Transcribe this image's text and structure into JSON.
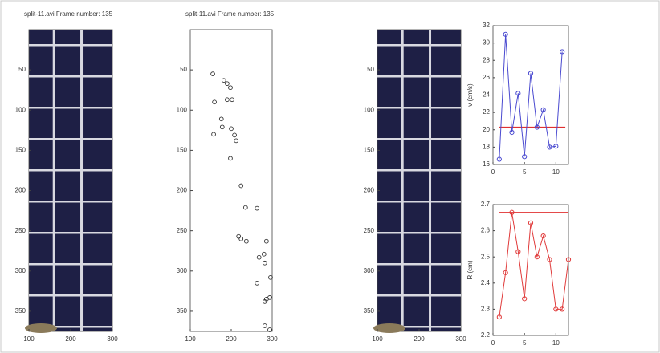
{
  "chart_data": [
    {
      "type": "image",
      "title": "split-11.avi  Frame number: 135",
      "xlim": [
        100,
        300
      ],
      "xticks": [
        100,
        200,
        300
      ],
      "ylim": [
        0,
        375
      ],
      "yticks": [
        50,
        100,
        150,
        200,
        250,
        300,
        350
      ],
      "background": "#1e1f45"
    },
    {
      "type": "scatter",
      "title": "split-11.avi  Frame number: 135",
      "xlim": [
        100,
        300
      ],
      "xticks": [
        100,
        200,
        300
      ],
      "ylim": [
        0,
        375
      ],
      "yticks": [
        50,
        100,
        150,
        200,
        250,
        300,
        350
      ],
      "color": "#333333",
      "x": [
        155,
        159,
        182,
        190,
        198,
        190,
        202,
        176,
        178,
        157,
        200,
        208,
        212,
        198,
        224,
        235,
        263,
        218,
        224,
        237,
        286,
        268,
        280,
        282,
        263,
        296,
        282,
        286,
        294,
        282,
        294
      ],
      "y": [
        55,
        90,
        63,
        67,
        72,
        87,
        87,
        111,
        121,
        130,
        123,
        131,
        138,
        160,
        194,
        221,
        222,
        257,
        260,
        263,
        263,
        283,
        279,
        290,
        315,
        308,
        338,
        335,
        333,
        368,
        373
      ]
    },
    {
      "type": "image",
      "xlim": [
        100,
        300
      ],
      "xticks": [
        100,
        200,
        300
      ],
      "ylim": [
        0,
        375
      ],
      "yticks": [
        50,
        100,
        150,
        200,
        250,
        300,
        350
      ],
      "background": "#1e1f45"
    },
    {
      "type": "line",
      "ylabel": "v (cm/s)",
      "xlim": [
        0,
        12
      ],
      "xticks": [
        0,
        5,
        10
      ],
      "ylim": [
        16,
        32
      ],
      "yticks": [
        16,
        18,
        20,
        22,
        24,
        26,
        28,
        30,
        32
      ],
      "color": "#4a4ad0",
      "x": [
        1,
        2,
        3,
        4,
        5,
        6,
        7,
        8,
        9,
        10,
        11
      ],
      "values": [
        16.6,
        31,
        19.7,
        24.2,
        16.9,
        26.5,
        20.3,
        22.3,
        18,
        18.1,
        29
      ],
      "reference_line": {
        "value": 20.3,
        "x": [
          1,
          11.5
        ],
        "color": "#e03030"
      }
    },
    {
      "type": "line",
      "ylabel": "R (cm)",
      "xlim": [
        0,
        12
      ],
      "xticks": [
        0,
        5,
        10
      ],
      "ylim": [
        2.2,
        2.7
      ],
      "yticks": [
        2.2,
        2.3,
        2.4,
        2.5,
        2.6,
        2.7
      ],
      "color": "#e03a3a",
      "x": [
        1,
        2,
        3,
        4,
        5,
        6,
        7,
        8,
        9,
        10,
        11,
        12
      ],
      "values": [
        2.27,
        2.44,
        2.67,
        2.52,
        2.34,
        2.63,
        2.5,
        2.58,
        2.49,
        2.3,
        2.3,
        2.49
      ],
      "reference_line": {
        "value": 2.67,
        "x": [
          1,
          12
        ],
        "color": "#e03030"
      }
    }
  ]
}
